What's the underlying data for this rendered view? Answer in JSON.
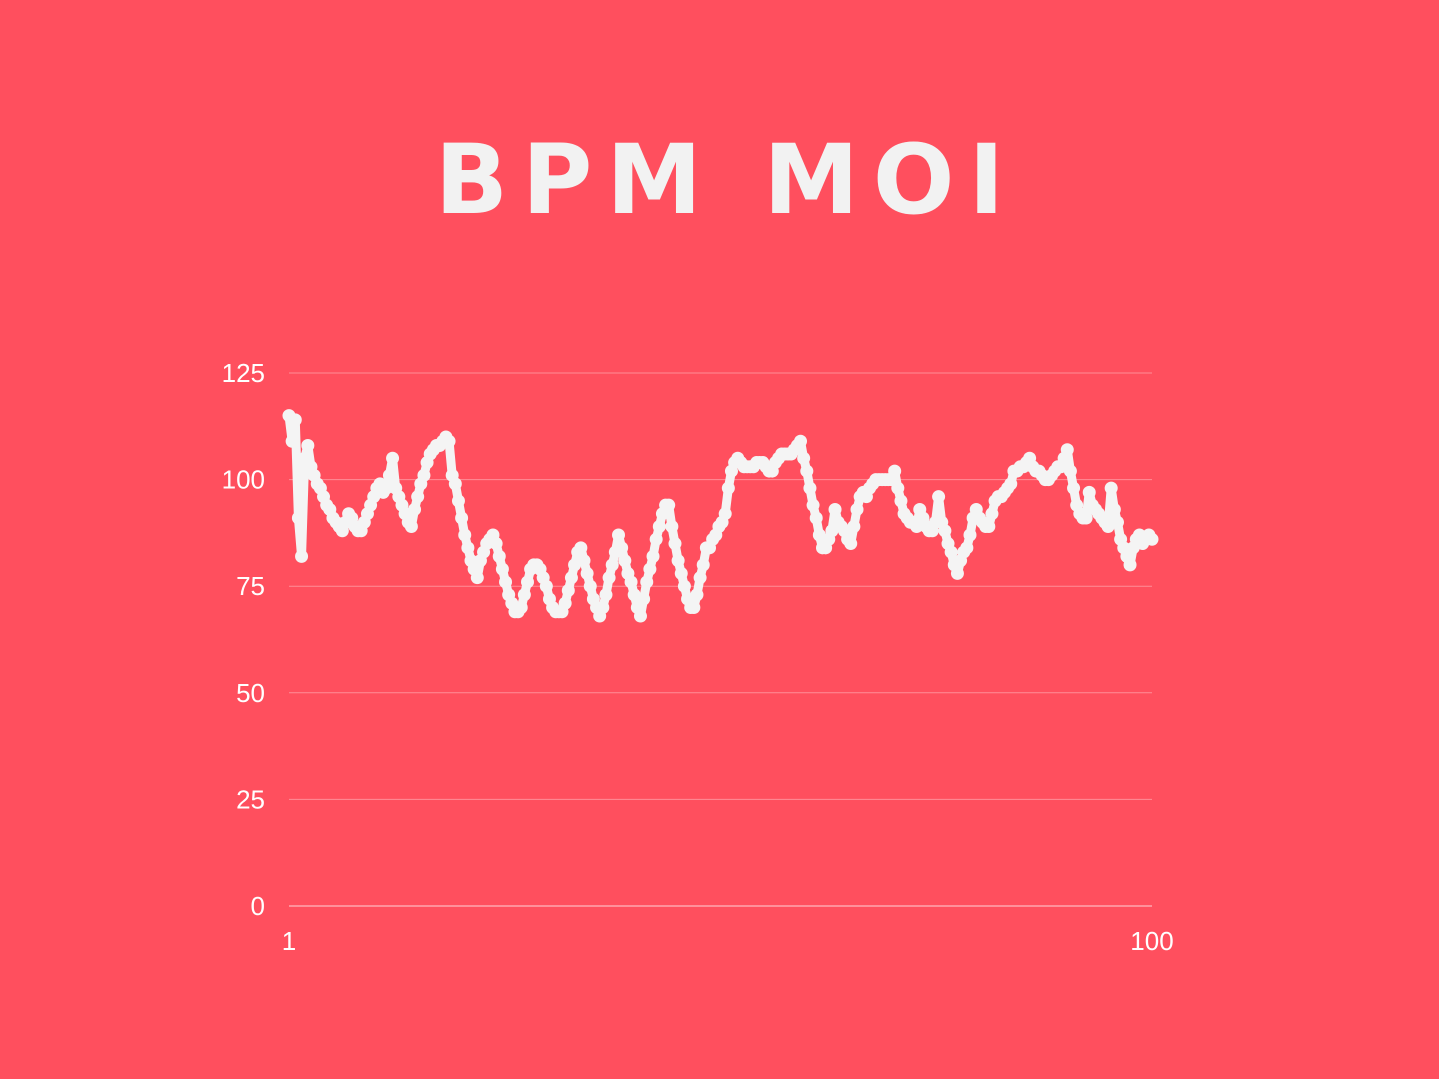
{
  "chart_data": {
    "type": "line",
    "title": "BPM MOI",
    "xlabel": "",
    "ylabel": "",
    "x_range": [
      1,
      100
    ],
    "ylim": [
      0,
      125
    ],
    "y_ticks": [
      "0",
      "25",
      "50",
      "75",
      "100",
      "125"
    ],
    "x_ticks": [
      "1",
      "100"
    ],
    "grid": true,
    "legend": "none",
    "line_color": "#f4f4f4",
    "background_color": "#ff4f5e",
    "series": [
      {
        "values": [
          115,
          109,
          114,
          91,
          82,
          105,
          108,
          103,
          101,
          99,
          98,
          96,
          94,
          93,
          91,
          90,
          89,
          88,
          90,
          92,
          91,
          89,
          88,
          88,
          90,
          92,
          94,
          96,
          98,
          99,
          97,
          98,
          101,
          105,
          98,
          96,
          94,
          92,
          90,
          89,
          93,
          96,
          99,
          101,
          104,
          106,
          107,
          108,
          108,
          109,
          110,
          109,
          101,
          99,
          95,
          91,
          87,
          84,
          81,
          79,
          77,
          81,
          83,
          85,
          86,
          87,
          85,
          82,
          79,
          76,
          73,
          71,
          69,
          69,
          70,
          73,
          76,
          79,
          80,
          80,
          79,
          77,
          75,
          72,
          70,
          69,
          69,
          69,
          71,
          74,
          77,
          80,
          83,
          84,
          81,
          78,
          75,
          72,
          70,
          68,
          70,
          73,
          77,
          80,
          83,
          87,
          84,
          81,
          78,
          76,
          73,
          70,
          68,
          72,
          76,
          79,
          82,
          86,
          89,
          92,
          94,
          94,
          89,
          85,
          81,
          78,
          75,
          72,
          70,
          70,
          73,
          77,
          80,
          84,
          84,
          86,
          87,
          89,
          90,
          92,
          98,
          102,
          104,
          105,
          104,
          103,
          103,
          103,
          103,
          104,
          104,
          104,
          103,
          102,
          102,
          104,
          105,
          106,
          106,
          106,
          106,
          107,
          108,
          109,
          105,
          102,
          98,
          94,
          91,
          87,
          84,
          84,
          86,
          88,
          93,
          90,
          89,
          88,
          86,
          85,
          89,
          93,
          96,
          97,
          96,
          98,
          99,
          100,
          100,
          100,
          100,
          100,
          100,
          102,
          98,
          95,
          92,
          91,
          90,
          90,
          89,
          93,
          91,
          89,
          88,
          88,
          90,
          96,
          90,
          88,
          85,
          83,
          80,
          78,
          81,
          83,
          84,
          87,
          91,
          93,
          91,
          90,
          89,
          89,
          92,
          95,
          96,
          96,
          97,
          98,
          99,
          102,
          102,
          103,
          103,
          104,
          105,
          103,
          102,
          102,
          101,
          100,
          100,
          101,
          102,
          103,
          103,
          105,
          107,
          102,
          98,
          94,
          92,
          91,
          91,
          97,
          94,
          93,
          92,
          91,
          90,
          89,
          98,
          93,
          90,
          86,
          84,
          82,
          80,
          84,
          86,
          87,
          85,
          86,
          87,
          86
        ]
      }
    ]
  }
}
